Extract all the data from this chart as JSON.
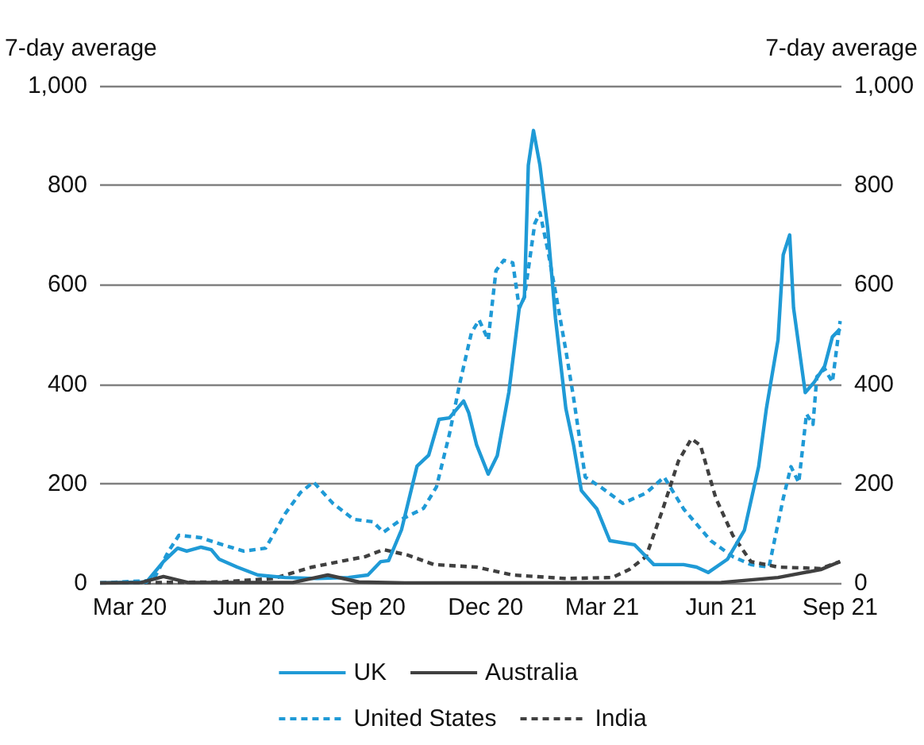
{
  "chart_data": {
    "type": "line",
    "ylabel": "7-day average",
    "y2label": "7-day average",
    "xlim": [
      "2020-02-07",
      "2021-09-02"
    ],
    "xticks": [
      {
        "value": "2020-03-01",
        "label": "Mar 20"
      },
      {
        "value": "2020-06-01",
        "label": "Jun 20"
      },
      {
        "value": "2020-09-01",
        "label": "Sep 20"
      },
      {
        "value": "2020-12-01",
        "label": "Dec 20"
      },
      {
        "value": "2021-03-01",
        "label": "Mar 21"
      },
      {
        "value": "2021-06-01",
        "label": "Jun 21"
      },
      {
        "value": "2021-09-01",
        "label": "Sep 21"
      }
    ],
    "ylim": [
      0,
      1000
    ],
    "yticks": [
      0,
      200,
      400,
      600,
      800,
      {
        "value": 1000,
        "label": "1,000"
      }
    ],
    "y2lim": [
      0,
      1000
    ],
    "y2ticks": [
      0,
      200,
      400,
      600,
      800,
      {
        "value": 1000,
        "label": "1,000"
      }
    ],
    "grid": "y",
    "legend": "bottom",
    "marker": "none",
    "series": [
      {
        "name": "UK",
        "color": "#1f9ad6",
        "line_style": "solid",
        "x": [
          "2020-02-07",
          "2020-03-14",
          "2020-03-27",
          "2020-04-07",
          "2020-04-14",
          "2020-04-25",
          "2020-05-03",
          "2020-05-09",
          "2020-05-23",
          "2020-06-08",
          "2020-06-29",
          "2020-07-24",
          "2020-08-17",
          "2020-09-01",
          "2020-09-11",
          "2020-09-17",
          "2020-09-27",
          "2020-10-09",
          "2020-10-18",
          "2020-10-26",
          "2020-11-03",
          "2020-11-14",
          "2020-11-18",
          "2020-11-24",
          "2020-12-03",
          "2020-12-10",
          "2020-12-19",
          "2020-12-27",
          "2020-12-31",
          "2021-01-03",
          "2021-01-07",
          "2021-01-12",
          "2021-01-18",
          "2021-01-24",
          "2021-02-01",
          "2021-02-07",
          "2021-02-13",
          "2021-02-25",
          "2021-03-07",
          "2021-03-26",
          "2021-04-10",
          "2021-05-03",
          "2021-05-13",
          "2021-05-22",
          "2021-06-06",
          "2021-06-19",
          "2021-06-30",
          "2021-07-06",
          "2021-07-15",
          "2021-07-19",
          "2021-07-24",
          "2021-07-27",
          "2021-08-05",
          "2021-08-12",
          "2021-08-20",
          "2021-08-26",
          "2021-09-01"
        ],
        "values": [
          0,
          2,
          43,
          70,
          64,
          72,
          67,
          48,
          32,
          16,
          11,
          9,
          11,
          16,
          43,
          45,
          107,
          235,
          257,
          329,
          332,
          366,
          342,
          278,
          219,
          256,
          384,
          553,
          575,
          840,
          910,
          840,
          713,
          532,
          351,
          277,
          186,
          149,
          85,
          77,
          37,
          37,
          32,
          21,
          48,
          106,
          234,
          351,
          489,
          660,
          700,
          553,
          383,
          404,
          436,
          495,
          511
        ]
      },
      {
        "name": "Australia",
        "color": "#404040",
        "line_style": "solid",
        "x": [
          "2020-02-07",
          "2020-03-10",
          "2020-03-27",
          "2020-04-15",
          "2020-07-05",
          "2020-08-01",
          "2020-08-25",
          "2020-10-01",
          "2021-06-01",
          "2021-07-15",
          "2021-08-17",
          "2021-09-01"
        ],
        "values": [
          0,
          1,
          13,
          1,
          1,
          16,
          2,
          0,
          1,
          11,
          27,
          43
        ]
      },
      {
        "name": "United States",
        "color": "#1f9ad6",
        "line_style": "dashed",
        "x": [
          "2020-02-07",
          "2020-03-19",
          "2020-03-31",
          "2020-04-08",
          "2020-04-25",
          "2020-05-08",
          "2020-05-28",
          "2020-06-14",
          "2020-06-29",
          "2020-07-11",
          "2020-07-21",
          "2020-08-05",
          "2020-08-21",
          "2020-09-05",
          "2020-09-13",
          "2020-09-27",
          "2020-10-14",
          "2020-10-24",
          "2020-11-03",
          "2020-11-11",
          "2020-11-20",
          "2020-11-26",
          "2020-12-03",
          "2020-12-09",
          "2020-12-15",
          "2020-12-22",
          "2020-12-27",
          "2020-12-31",
          "2021-01-08",
          "2021-01-12",
          "2021-01-18",
          "2021-01-24",
          "2021-02-01",
          "2021-02-07",
          "2021-02-16",
          "2021-03-01",
          "2021-03-17",
          "2021-04-04",
          "2021-04-18",
          "2021-05-03",
          "2021-05-24",
          "2021-06-10",
          "2021-06-24",
          "2021-07-08",
          "2021-07-19",
          "2021-07-25",
          "2021-07-31",
          "2021-08-06",
          "2021-08-11",
          "2021-08-14",
          "2021-08-20",
          "2021-08-26",
          "2021-09-01"
        ],
        "values": [
          0,
          5,
          64,
          96,
          91,
          80,
          64,
          70,
          139,
          182,
          203,
          160,
          128,
          123,
          102,
          128,
          150,
          193,
          299,
          401,
          503,
          529,
          489,
          628,
          649,
          644,
          553,
          575,
          723,
          745,
          670,
          585,
          468,
          372,
          213,
          191,
          160,
          181,
          213,
          149,
          85,
          53,
          37,
          32,
          170,
          234,
          202,
          340,
          319,
          415,
          431,
          404,
          527
        ]
      },
      {
        "name": "India",
        "color": "#404040",
        "line_style": "dashed",
        "x": [
          "2020-02-07",
          "2020-05-10",
          "2020-06-20",
          "2020-07-20",
          "2020-08-14",
          "2020-08-30",
          "2020-09-13",
          "2020-10-02",
          "2020-10-22",
          "2020-11-24",
          "2020-12-22",
          "2021-02-01",
          "2021-03-09",
          "2021-03-22",
          "2021-04-04",
          "2021-04-17",
          "2021-04-29",
          "2021-05-09",
          "2021-05-16",
          "2021-05-28",
          "2021-06-10",
          "2021-06-24",
          "2021-07-15",
          "2021-08-17",
          "2021-09-01"
        ],
        "values": [
          0,
          2,
          9,
          32,
          45,
          53,
          67,
          56,
          37,
          32,
          16,
          9,
          11,
          27,
          53,
          149,
          245,
          290,
          277,
          170,
          96,
          43,
          32,
          29,
          43
        ]
      }
    ]
  }
}
